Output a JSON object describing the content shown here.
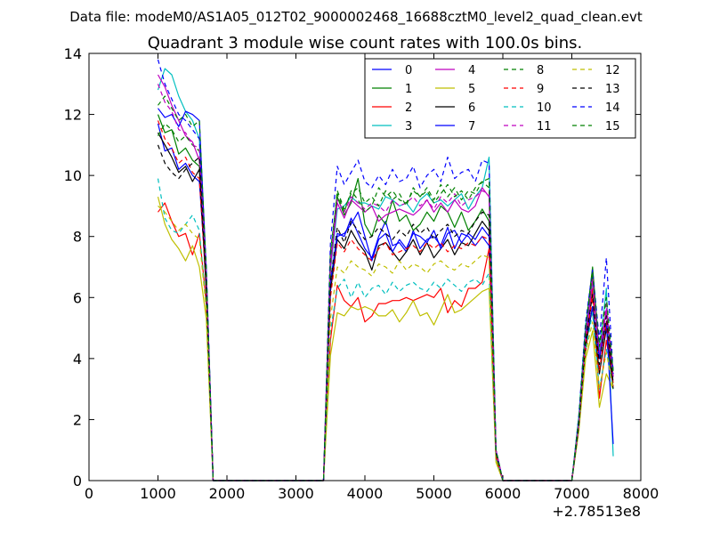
{
  "figure": {
    "suptitle": "Data file: modeM0/AS1A05_012T02_9000002468_16688cztM0_level2_quad_clean.evt"
  },
  "chart_data": {
    "type": "line",
    "title": "Quadrant 3 module wise count rates with 100.0s bins.",
    "xlabel": "",
    "ylabel": "",
    "x_offset_label": "+2.78513e8",
    "xlim": [
      0,
      8000
    ],
    "ylim": [
      0,
      14
    ],
    "x_ticks": [
      0,
      1000,
      2000,
      3000,
      4000,
      5000,
      6000,
      7000,
      8000
    ],
    "y_ticks": [
      0,
      2,
      4,
      6,
      8,
      10,
      12,
      14
    ],
    "legend_position": "top-right",
    "x": [
      1000,
      1100,
      1200,
      1300,
      1400,
      1500,
      1600,
      1700,
      1800,
      1900,
      2000,
      2100,
      2200,
      2300,
      2400,
      2500,
      2600,
      2700,
      2800,
      2900,
      3000,
      3100,
      3200,
      3300,
      3400,
      3500,
      3600,
      3700,
      3800,
      3900,
      4000,
      4100,
      4200,
      4300,
      4400,
      4500,
      4600,
      4700,
      4800,
      4900,
      5000,
      5100,
      5200,
      5300,
      5400,
      5500,
      5600,
      5700,
      5800,
      5900,
      6000,
      6100,
      6200,
      6300,
      6400,
      6500,
      6600,
      6700,
      6800,
      6900,
      7000,
      7100,
      7200,
      7300,
      7400,
      7500,
      7600
    ],
    "series": [
      {
        "name": "0",
        "color": "#0000ff",
        "dash": "solid",
        "values": [
          11.7,
          10.8,
          10.9,
          10.2,
          10.4,
          10.0,
          9.8,
          6.5,
          0,
          0,
          0,
          0,
          0,
          0,
          0,
          0,
          0,
          0,
          0,
          0,
          0,
          0,
          0,
          0,
          0,
          6.5,
          8.1,
          8.0,
          8.6,
          8.1,
          7.6,
          7.3,
          8.0,
          8.5,
          7.7,
          7.8,
          7.5,
          8.2,
          7.6,
          7.9,
          8.0,
          7.7,
          8.3,
          7.6,
          8.1,
          8.0,
          7.7,
          8.0,
          7.7,
          0.8,
          0,
          0,
          0,
          0,
          0,
          0,
          0,
          0,
          0,
          0,
          0,
          1.8,
          4.6,
          6.6,
          4.0,
          5.2,
          3.4
        ]
      },
      {
        "name": "1",
        "color": "#008000",
        "dash": "solid",
        "values": [
          12.0,
          11.4,
          11.5,
          10.7,
          10.9,
          10.5,
          10.3,
          6.8,
          0,
          0,
          0,
          0,
          0,
          0,
          0,
          0,
          0,
          0,
          0,
          0,
          0,
          0,
          0,
          0,
          0,
          6.9,
          9.3,
          8.7,
          9.1,
          9.9,
          8.4,
          8.0,
          8.7,
          8.4,
          9.2,
          8.5,
          8.7,
          8.2,
          8.4,
          8.8,
          8.5,
          9.0,
          8.8,
          8.3,
          8.8,
          8.2,
          8.5,
          8.9,
          8.5,
          0.9,
          0,
          0,
          0,
          0,
          0,
          0,
          0,
          0,
          0,
          0,
          0,
          2.0,
          5.0,
          7.0,
          4.2,
          5.6,
          3.6
        ]
      },
      {
        "name": "2",
        "color": "#ff0000",
        "dash": "solid",
        "values": [
          8.8,
          9.1,
          8.5,
          8.0,
          8.1,
          7.4,
          8.1,
          5.8,
          0,
          0,
          0,
          0,
          0,
          0,
          0,
          0,
          0,
          0,
          0,
          0,
          0,
          0,
          0,
          0,
          0,
          4.6,
          6.4,
          5.9,
          5.7,
          6.0,
          5.2,
          5.4,
          5.8,
          5.8,
          5.9,
          5.9,
          6.0,
          5.9,
          6.0,
          6.1,
          6.0,
          6.3,
          5.5,
          5.9,
          5.7,
          6.3,
          6.3,
          6.5,
          7.6,
          0.7,
          0,
          0,
          0,
          0,
          0,
          0,
          0,
          0,
          0,
          0,
          0,
          1.7,
          4.2,
          6.3,
          2.7,
          4.6,
          3.2
        ]
      },
      {
        "name": "3",
        "color": "#00bfbf",
        "dash": "solid",
        "values": [
          12.8,
          13.5,
          13.3,
          12.6,
          12.1,
          11.8,
          11.2,
          6.3,
          0,
          0,
          0,
          0,
          0,
          0,
          0,
          0,
          0,
          0,
          0,
          0,
          0,
          0,
          0,
          0,
          0,
          6.9,
          8.9,
          9.0,
          9.3,
          9.1,
          9.1,
          9.0,
          8.9,
          9.3,
          9.2,
          9.0,
          9.1,
          8.8,
          9.2,
          9.4,
          9.1,
          9.2,
          9.0,
          9.2,
          9.4,
          8.9,
          9.3,
          9.6,
          10.6,
          1.0,
          0,
          0,
          0,
          0,
          0,
          0,
          0,
          0,
          0,
          0,
          0,
          2.1,
          5.1,
          6.5,
          4.2,
          6.3,
          0.8
        ]
      },
      {
        "name": "4",
        "color": "#bf00bf",
        "dash": "solid",
        "values": [
          13.3,
          12.9,
          12.3,
          11.8,
          11.3,
          11.1,
          10.5,
          6.6,
          0,
          0,
          0,
          0,
          0,
          0,
          0,
          0,
          0,
          0,
          0,
          0,
          0,
          0,
          0,
          0,
          0,
          7.0,
          9.1,
          8.6,
          9.2,
          9.0,
          8.8,
          9.0,
          8.5,
          8.7,
          8.8,
          8.9,
          8.8,
          8.7,
          8.9,
          9.2,
          8.8,
          9.1,
          8.8,
          9.2,
          8.9,
          8.8,
          9.0,
          9.6,
          9.3,
          1.0,
          0,
          0,
          0,
          0,
          0,
          0,
          0,
          0,
          0,
          0,
          0,
          1.8,
          4.8,
          6.7,
          4.0,
          5.6,
          3.4
        ]
      },
      {
        "name": "5",
        "color": "#bfbf00",
        "dash": "solid",
        "values": [
          9.3,
          8.4,
          7.9,
          7.6,
          7.2,
          7.7,
          7.0,
          5.3,
          0,
          0,
          0,
          0,
          0,
          0,
          0,
          0,
          0,
          0,
          0,
          0,
          0,
          0,
          0,
          0,
          0,
          4.1,
          5.5,
          5.4,
          5.7,
          5.6,
          5.7,
          5.6,
          5.4,
          5.4,
          5.6,
          5.2,
          5.5,
          5.9,
          5.4,
          5.5,
          5.1,
          5.6,
          6.1,
          5.5,
          5.6,
          5.8,
          6.0,
          6.2,
          6.3,
          0.6,
          0,
          0,
          0,
          0,
          0,
          0,
          0,
          0,
          0,
          0,
          0,
          1.6,
          4.0,
          4.9,
          2.4,
          3.5,
          3.0
        ]
      },
      {
        "name": "6",
        "color": "#000000",
        "dash": "solid",
        "values": [
          11.4,
          11.0,
          10.6,
          10.1,
          10.3,
          9.8,
          10.2,
          6.2,
          0,
          0,
          0,
          0,
          0,
          0,
          0,
          0,
          0,
          0,
          0,
          0,
          0,
          0,
          0,
          0,
          0,
          6.2,
          7.9,
          7.6,
          8.2,
          7.8,
          7.5,
          6.9,
          7.7,
          7.8,
          7.5,
          7.2,
          7.5,
          7.9,
          7.4,
          7.8,
          7.3,
          7.6,
          7.9,
          7.4,
          7.8,
          7.7,
          8.1,
          8.5,
          8.2,
          0.8,
          0,
          0,
          0,
          0,
          0,
          0,
          0,
          0,
          0,
          0,
          0,
          1.8,
          4.4,
          5.7,
          3.5,
          5.0,
          3.0
        ]
      },
      {
        "name": "7",
        "color": "#0000ff",
        "dash": "solid",
        "values": [
          12.2,
          11.9,
          12.0,
          11.6,
          12.1,
          12.0,
          11.8,
          6.9,
          0,
          0,
          0,
          0,
          0,
          0,
          0,
          0,
          0,
          0,
          0,
          0,
          0,
          0,
          0,
          0,
          0,
          6.5,
          8.0,
          8.1,
          8.4,
          8.8,
          8.0,
          7.2,
          7.9,
          8.1,
          7.5,
          7.9,
          7.6,
          8.1,
          8.0,
          7.8,
          8.2,
          7.6,
          8.1,
          8.2,
          7.8,
          8.1,
          7.9,
          8.3,
          8.0,
          0.8,
          0,
          0,
          0,
          0,
          0,
          0,
          0,
          0,
          0,
          0,
          0,
          1.8,
          4.6,
          5.7,
          4.0,
          5.2,
          1.2
        ]
      },
      {
        "name": "8",
        "color": "#008000",
        "dash": "dashed",
        "values": [
          11.3,
          11.7,
          11.5,
          11.1,
          11.3,
          11.0,
          10.8,
          6.7,
          0,
          0,
          0,
          0,
          0,
          0,
          0,
          0,
          0,
          0,
          0,
          0,
          0,
          0,
          0,
          0,
          0,
          7.5,
          9.4,
          8.8,
          9.5,
          9.2,
          8.8,
          9.0,
          9.6,
          9.3,
          9.5,
          9.2,
          9.1,
          9.5,
          9.3,
          9.6,
          9.2,
          9.7,
          9.3,
          9.6,
          9.2,
          9.5,
          9.4,
          9.8,
          9.6,
          1.0,
          0,
          0,
          0,
          0,
          0,
          0,
          0,
          0,
          0,
          0,
          0,
          2.0,
          5.0,
          6.8,
          4.5,
          6.0,
          3.6
        ]
      },
      {
        "name": "9",
        "color": "#ff0000",
        "dash": "dashed",
        "values": [
          11.8,
          11.2,
          10.9,
          10.4,
          10.6,
          10.1,
          9.9,
          6.4,
          0,
          0,
          0,
          0,
          0,
          0,
          0,
          0,
          0,
          0,
          0,
          0,
          0,
          0,
          0,
          0,
          0,
          6.0,
          7.8,
          7.5,
          7.9,
          7.6,
          7.4,
          7.2,
          7.6,
          7.8,
          7.4,
          7.5,
          7.6,
          7.7,
          7.5,
          7.8,
          7.6,
          7.8,
          7.5,
          7.7,
          7.6,
          7.8,
          7.7,
          8.0,
          7.9,
          0.8,
          0,
          0,
          0,
          0,
          0,
          0,
          0,
          0,
          0,
          0,
          0,
          1.8,
          4.5,
          6.0,
          3.6,
          5.2,
          3.1
        ]
      },
      {
        "name": "10",
        "color": "#00bfbf",
        "dash": "dashed",
        "values": [
          9.9,
          8.6,
          8.2,
          8.1,
          8.4,
          8.7,
          8.2,
          5.7,
          0,
          0,
          0,
          0,
          0,
          0,
          0,
          0,
          0,
          0,
          0,
          0,
          0,
          0,
          0,
          0,
          0,
          4.9,
          6.3,
          6.6,
          6.0,
          6.5,
          6.0,
          6.3,
          6.4,
          6.1,
          6.5,
          6.2,
          6.4,
          6.5,
          6.3,
          6.2,
          6.5,
          6.3,
          6.6,
          6.4,
          6.2,
          6.5,
          6.6,
          6.4,
          6.8,
          0.7,
          0,
          0,
          0,
          0,
          0,
          0,
          0,
          0,
          0,
          0,
          0,
          1.7,
          4.3,
          5.5,
          3.0,
          4.3,
          3.0
        ]
      },
      {
        "name": "11",
        "color": "#bf00bf",
        "dash": "dashed",
        "values": [
          13.0,
          12.4,
          12.1,
          11.5,
          11.4,
          11.0,
          10.9,
          6.7,
          0,
          0,
          0,
          0,
          0,
          0,
          0,
          0,
          0,
          0,
          0,
          0,
          0,
          0,
          0,
          0,
          0,
          7.2,
          9.2,
          8.8,
          9.3,
          9.1,
          8.9,
          9.1,
          9.0,
          8.8,
          9.2,
          9.0,
          9.1,
          9.3,
          9.0,
          9.2,
          8.9,
          9.3,
          9.1,
          9.4,
          9.0,
          9.2,
          9.3,
          9.5,
          9.4,
          1.0,
          0,
          0,
          0,
          0,
          0,
          0,
          0,
          0,
          0,
          0,
          0,
          1.9,
          4.8,
          6.5,
          4.2,
          5.8,
          3.4
        ]
      },
      {
        "name": "12",
        "color": "#bfbf00",
        "dash": "dashed",
        "values": [
          9.0,
          8.8,
          8.5,
          8.2,
          8.4,
          8.1,
          7.9,
          5.6,
          0,
          0,
          0,
          0,
          0,
          0,
          0,
          0,
          0,
          0,
          0,
          0,
          0,
          0,
          0,
          0,
          0,
          5.3,
          7.0,
          6.8,
          7.2,
          7.0,
          6.9,
          6.7,
          7.1,
          7.0,
          6.8,
          7.2,
          6.9,
          7.1,
          7.0,
          6.8,
          7.1,
          7.2,
          7.0,
          6.9,
          7.1,
          7.0,
          7.2,
          7.4,
          7.3,
          0.7,
          0,
          0,
          0,
          0,
          0,
          0,
          0,
          0,
          0,
          0,
          0,
          1.7,
          4.2,
          5.2,
          3.0,
          4.2,
          3.0
        ]
      },
      {
        "name": "13",
        "color": "#000000",
        "dash": "dashed",
        "values": [
          11.0,
          10.4,
          10.1,
          9.9,
          10.2,
          10.4,
          10.6,
          6.4,
          0,
          0,
          0,
          0,
          0,
          0,
          0,
          0,
          0,
          0,
          0,
          0,
          0,
          0,
          0,
          0,
          0,
          6.5,
          8.3,
          7.8,
          8.5,
          8.2,
          7.9,
          8.0,
          8.3,
          8.1,
          7.9,
          8.2,
          8.0,
          8.4,
          8.1,
          8.3,
          7.9,
          8.2,
          8.4,
          8.0,
          8.2,
          8.1,
          8.5,
          8.8,
          8.7,
          0.9,
          0,
          0,
          0,
          0,
          0,
          0,
          0,
          0,
          0,
          0,
          0,
          1.8,
          4.6,
          6.1,
          3.8,
          5.4,
          3.2
        ]
      },
      {
        "name": "14",
        "color": "#0000ff",
        "dash": "dashed",
        "values": [
          13.8,
          13.0,
          12.5,
          12.0,
          11.8,
          11.5,
          11.2,
          7.0,
          0,
          0,
          0,
          0,
          0,
          0,
          0,
          0,
          0,
          0,
          0,
          0,
          0,
          0,
          0,
          0,
          0,
          7.8,
          10.3,
          9.7,
          10.1,
          10.5,
          9.8,
          9.6,
          10.0,
          9.7,
          10.2,
          9.8,
          9.9,
          10.3,
          9.6,
          10.0,
          10.2,
          9.8,
          10.6,
          9.9,
          10.1,
          10.2,
          9.8,
          10.5,
          10.4,
          1.0,
          0,
          0,
          0,
          0,
          0,
          0,
          0,
          0,
          0,
          0,
          0,
          2.1,
          5.2,
          6.9,
          4.6,
          7.3,
          3.5
        ]
      },
      {
        "name": "15",
        "color": "#008000",
        "dash": "dashed",
        "values": [
          12.3,
          12.6,
          12.2,
          11.8,
          12.0,
          11.6,
          11.8,
          6.9,
          0,
          0,
          0,
          0,
          0,
          0,
          0,
          0,
          0,
          0,
          0,
          0,
          0,
          0,
          0,
          0,
          0,
          7.3,
          9.5,
          8.9,
          9.4,
          9.6,
          9.1,
          9.3,
          9.0,
          9.5,
          9.2,
          9.4,
          9.0,
          9.6,
          9.3,
          9.5,
          9.1,
          9.4,
          9.7,
          9.3,
          9.5,
          9.2,
          9.6,
          9.8,
          9.9,
          1.0,
          0,
          0,
          0,
          0,
          0,
          0,
          0,
          0,
          0,
          0,
          0,
          2.0,
          5.0,
          6.8,
          4.4,
          6.0,
          3.5
        ]
      }
    ]
  }
}
